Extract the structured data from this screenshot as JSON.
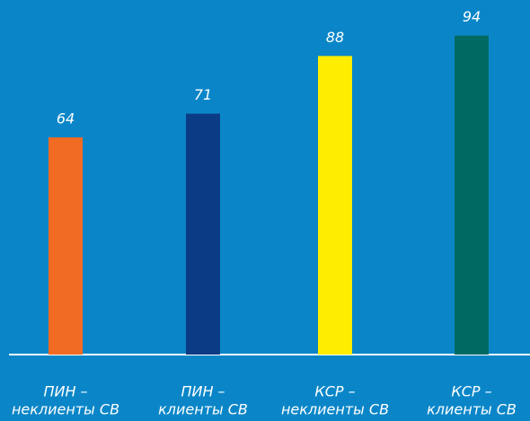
{
  "chart_data": {
    "type": "bar",
    "categories": [
      [
        "ПИН –",
        "неклиенты СВ"
      ],
      [
        "ПИН –",
        "клиенты СВ"
      ],
      [
        "КСР –",
        "неклиенты СВ"
      ],
      [
        "КСР –",
        "клиенты СВ"
      ]
    ],
    "values": [
      64,
      71,
      88,
      94
    ],
    "colors": [
      "#f26b22",
      "#0b3b84",
      "#ffed00",
      "#006a62"
    ],
    "ylim": [
      0,
      100
    ]
  }
}
